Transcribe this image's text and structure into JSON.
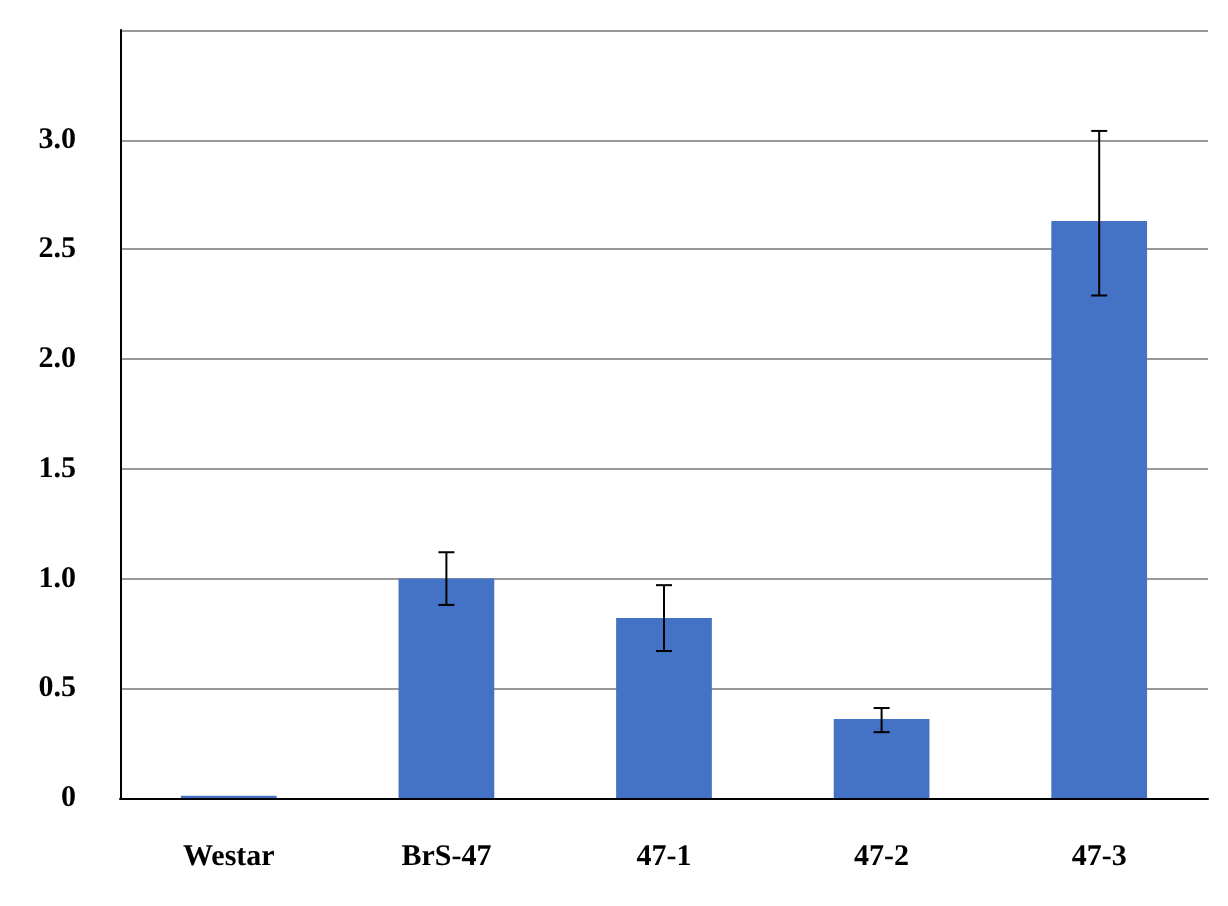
{
  "chart_data": {
    "type": "bar",
    "categories": [
      "Westar",
      "BrS-47",
      "47-1",
      "47-2",
      "47-3"
    ],
    "values": [
      0.01,
      1.0,
      0.82,
      0.36,
      2.63
    ],
    "errors": [
      null,
      [
        0.88,
        1.12
      ],
      [
        0.67,
        0.97
      ],
      [
        0.3,
        0.41
      ],
      [
        2.29,
        3.04
      ]
    ],
    "color": "#4472c4",
    "ylim": [
      0,
      3.5
    ],
    "yticks": [
      0,
      0.5,
      {
        "value": 1,
        "label": "1.0"
      },
      1.5,
      {
        "value": 2,
        "label": "2.0"
      },
      2.5,
      {
        "value": 3,
        "label": "3.0"
      },
      {
        "value": 3.5,
        "label": null
      }
    ],
    "grid": "y"
  }
}
